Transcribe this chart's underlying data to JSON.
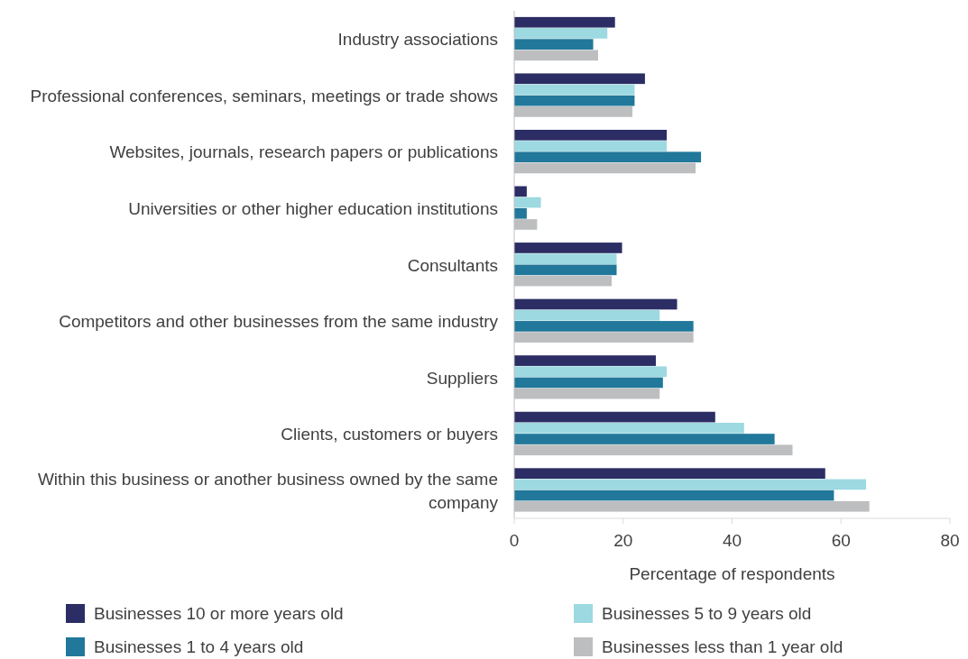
{
  "chart_data": {
    "type": "bar",
    "orientation": "horizontal",
    "xlabel": "Percentage of respondents",
    "categories": [
      "Industry associations",
      "Professional conferences, seminars, meetings or trade shows",
      "Websites, journals, research papers or publications",
      "Universities or other higher education institutions",
      "Consultants",
      "Competitors and other businesses from the same industry",
      "Suppliers",
      "Clients, customers or buyers",
      "Within this business or another business owned by the same company"
    ],
    "series": [
      {
        "name": "Businesses 10 or more years old",
        "color": "#2b2d64",
        "values": [
          18.5,
          24.0,
          28.0,
          2.3,
          19.8,
          29.9,
          26.0,
          36.9,
          57.1
        ]
      },
      {
        "name": "Businesses 5 to 9 years old",
        "color": "#9dd9e0",
        "values": [
          17.1,
          22.1,
          28.0,
          4.9,
          18.8,
          26.7,
          28.0,
          42.2,
          64.6
        ]
      },
      {
        "name": "Businesses 1 to 4 years old",
        "color": "#21789a",
        "values": [
          14.5,
          22.1,
          34.3,
          2.3,
          18.8,
          32.9,
          27.3,
          47.8,
          58.7
        ]
      },
      {
        "name": "Businesses less than 1 year old",
        "color": "#bcbec0",
        "values": [
          15.4,
          21.7,
          33.3,
          4.2,
          17.9,
          32.9,
          26.7,
          51.1,
          65.2
        ]
      }
    ],
    "xlim": [
      0,
      80
    ],
    "xticks": [
      0,
      20,
      40,
      60,
      80
    ],
    "grid": false,
    "legend": "bottom"
  }
}
